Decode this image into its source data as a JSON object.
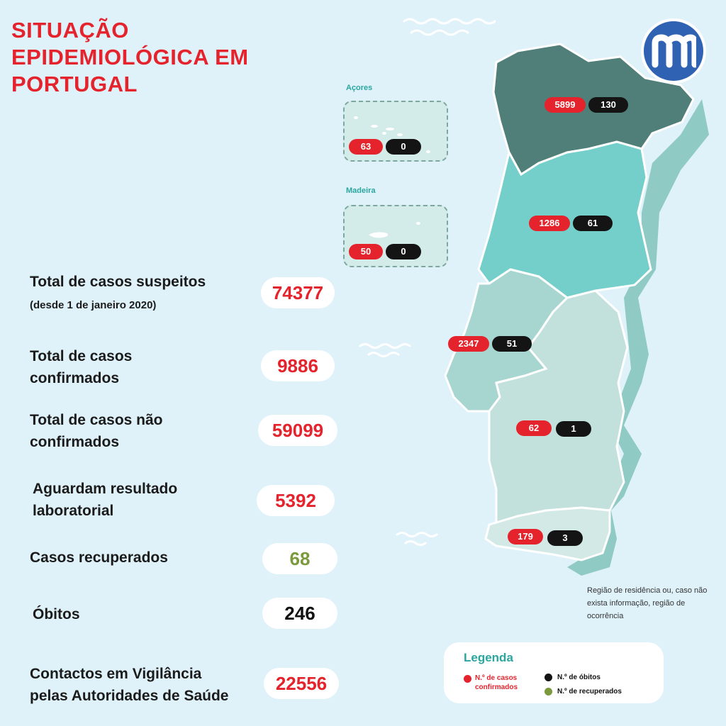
{
  "title": "SITUAÇÃO EPIDEMIOLÓGICA EM PORTUGAL",
  "stats": [
    {
      "label": "Total de casos suspeitos",
      "note": "(desde 1 de janeiro 2020)",
      "value": "74377"
    },
    {
      "label": "Total de casos confirmados",
      "value": "9886"
    },
    {
      "label": "Total de casos não confirmados",
      "value": "59099"
    },
    {
      "label": "Aguardam resultado laboratorial",
      "value": "5392"
    },
    {
      "label": "Casos recuperados",
      "value": "68"
    },
    {
      "label": "Óbitos",
      "value": "246"
    },
    {
      "label": "Contactos em Vigilância pelas Autoridades de Saúde",
      "value": "22556"
    }
  ],
  "insets": {
    "acores": {
      "title": "Açores",
      "cases": "63",
      "deaths": "0"
    },
    "madeira": {
      "title": "Madeira",
      "cases": "50",
      "deaths": "0"
    }
  },
  "regions": [
    {
      "name": "norte",
      "cases": "5899",
      "deaths": "130"
    },
    {
      "name": "centro",
      "cases": "1286",
      "deaths": "61"
    },
    {
      "name": "lisboa",
      "cases": "2347",
      "deaths": "51"
    },
    {
      "name": "alentejo",
      "cases": "62",
      "deaths": "1"
    },
    {
      "name": "algarve",
      "cases": "179",
      "deaths": "3"
    }
  ],
  "note": "Região de residência ou, caso não exista informação, região de ocorrência",
  "legend": {
    "title": "Legenda",
    "cases": "N.º de casos confirmados",
    "deaths": "N.º de óbitos",
    "recovered": "N.º de recuperados"
  },
  "colors": {
    "red": "#e5232d",
    "black": "#141414",
    "green": "#7b9a3c",
    "norte": "#4f7f78",
    "centro": "#74cfcb",
    "lisboa": "#a7d6d1",
    "alentejo": "#c2e0dc",
    "algarve": "#d3e9e6"
  },
  "logo": {
    "icon": "m-logo-icon",
    "letter": "m"
  }
}
